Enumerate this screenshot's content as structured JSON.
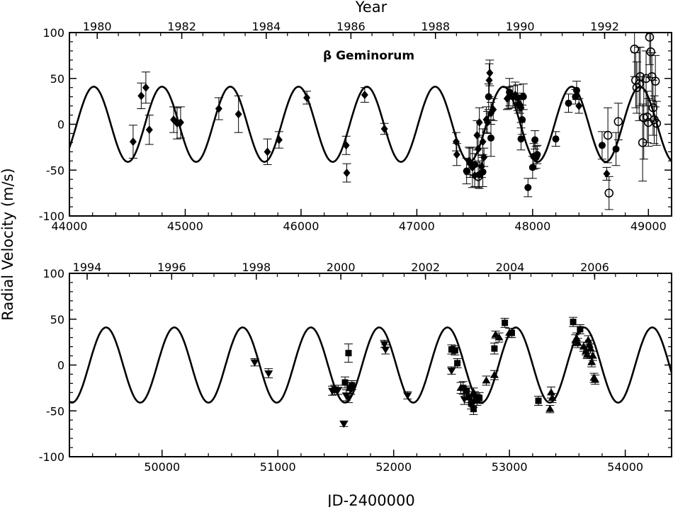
{
  "figure": {
    "top_axis_title": "Year",
    "ylabel": "Radial Velocity (m/s)",
    "xlabel": "JD-2400000",
    "star_name": "β Geminorum"
  },
  "chart_data": [
    {
      "type": "scatter",
      "panel": "top",
      "title": "",
      "annotation": "β Geminorum",
      "xlabel": "",
      "ylabel": "Radial Velocity (m/s)",
      "xlim": [
        44000,
        49200
      ],
      "ylim": [
        -100,
        100
      ],
      "x_ticks": [
        44000,
        45000,
        46000,
        47000,
        48000,
        49000
      ],
      "y_ticks": [
        -100,
        -50,
        0,
        50,
        100
      ],
      "top_axis": {
        "label": "Year",
        "ticks": [
          {
            "label": "1980",
            "jd": 44240
          },
          {
            "label": "1982",
            "jd": 44970
          },
          {
            "label": "1984",
            "jd": 45700
          },
          {
            "label": "1986",
            "jd": 46431
          },
          {
            "label": "1988",
            "jd": 47161
          },
          {
            "label": "1990",
            "jd": 47892
          },
          {
            "label": "1992",
            "jd": 48622
          }
        ]
      },
      "model": {
        "amplitude": 41,
        "period": 589.6,
        "peak_jd": 44210
      },
      "series": [
        {
          "marker": "diamond",
          "points": [
            [
              44550,
              -19,
              18
            ],
            [
              44620,
              31,
              14
            ],
            [
              44660,
              40,
              17
            ],
            [
              44690,
              -6,
              16
            ],
            [
              44900,
              5,
              14
            ],
            [
              44930,
              1,
              17
            ],
            [
              44960,
              2,
              17
            ],
            [
              45290,
              17,
              12
            ],
            [
              45460,
              11,
              20
            ],
            [
              45710,
              -30,
              14
            ],
            [
              45810,
              -17,
              9
            ],
            [
              46050,
              29,
              7
            ],
            [
              46390,
              -23,
              10
            ],
            [
              46395,
              -53,
              10
            ],
            [
              46550,
              32,
              8
            ],
            [
              46720,
              -5,
              6
            ],
            [
              47340,
              -19,
              10
            ],
            [
              47345,
              -33,
              12
            ],
            [
              47450,
              -40,
              15
            ],
            [
              47480,
              -47,
              22
            ],
            [
              47500,
              -56,
              12
            ],
            [
              47520,
              -12,
              16
            ],
            [
              47530,
              -27,
              15
            ],
            [
              47540,
              2,
              16
            ],
            [
              47560,
              -46,
              12
            ],
            [
              47570,
              -19,
              14
            ],
            [
              47580,
              -36,
              10
            ],
            [
              47600,
              5,
              14
            ],
            [
              47610,
              2,
              12
            ],
            [
              47625,
              48,
              18
            ],
            [
              47630,
              56,
              14
            ],
            [
              47640,
              12,
              12
            ],
            [
              47660,
              16,
              12
            ],
            [
              47780,
              28,
              12
            ],
            [
              47790,
              29,
              12
            ],
            [
              47850,
              32,
              14
            ],
            [
              47900,
              18,
              16
            ],
            [
              48400,
              20,
              8
            ],
            [
              48640,
              -54,
              7
            ]
          ]
        },
        {
          "marker": "circle",
          "points": [
            [
              47430,
              -51,
              14
            ],
            [
              47460,
              -42,
              16
            ],
            [
              47500,
              -44,
              12
            ],
            [
              47540,
              -55,
              15
            ],
            [
              47570,
              -52,
              16
            ],
            [
              47620,
              30,
              14
            ],
            [
              47640,
              -15,
              20
            ],
            [
              47800,
              35,
              15
            ],
            [
              47830,
              30,
              12
            ],
            [
              47870,
              29,
              14
            ],
            [
              47880,
              22,
              10
            ],
            [
              47890,
              20,
              8
            ],
            [
              47900,
              -16,
              12
            ],
            [
              47910,
              5,
              16
            ],
            [
              47920,
              30,
              14
            ],
            [
              47960,
              -69,
              10
            ],
            [
              48000,
              -47,
              12
            ],
            [
              48010,
              -35,
              14
            ],
            [
              48020,
              -17,
              10
            ],
            [
              48030,
              -36,
              12
            ],
            [
              48040,
              -33,
              10
            ],
            [
              48200,
              -16,
              8
            ],
            [
              48310,
              23,
              10
            ],
            [
              48370,
              30,
              8
            ],
            [
              48380,
              37,
              10
            ],
            [
              48600,
              -23,
              15
            ],
            [
              48720,
              -27,
              18
            ]
          ]
        },
        {
          "marker": "open-circle",
          "points": [
            [
              47530,
              -57,
              12
            ],
            [
              48650,
              -12,
              30
            ],
            [
              48660,
              -75,
              18
            ],
            [
              48740,
              3,
              20
            ],
            [
              48880,
              82,
              30
            ],
            [
              48890,
              48,
              30
            ],
            [
              48900,
              40,
              28
            ],
            [
              48920,
              44,
              40
            ],
            [
              48930,
              52,
              32
            ],
            [
              48950,
              -20,
              42
            ],
            [
              48960,
              7,
              45
            ],
            [
              48980,
              50,
              30
            ],
            [
              48990,
              8,
              28
            ],
            [
              49000,
              2,
              26
            ],
            [
              49010,
              95,
              30
            ],
            [
              49020,
              79,
              28
            ],
            [
              49030,
              52,
              26
            ],
            [
              49040,
              18,
              30
            ],
            [
              49050,
              5,
              26
            ],
            [
              49060,
              47,
              28
            ],
            [
              49070,
              1,
              24
            ]
          ]
        }
      ]
    },
    {
      "type": "scatter",
      "panel": "bottom",
      "title": "",
      "xlabel": "JD-2400000",
      "ylabel": "Radial Velocity (m/s)",
      "xlim": [
        49200,
        54400
      ],
      "ylim": [
        -100,
        100
      ],
      "x_ticks": [
        50000,
        51000,
        52000,
        53000,
        54000
      ],
      "y_ticks": [
        -100,
        -50,
        0,
        50,
        100
      ],
      "top_axis": {
        "label": "Year",
        "ticks": [
          {
            "label": "1994",
            "jd": 49353
          },
          {
            "label": "1996",
            "jd": 50083
          },
          {
            "label": "1998",
            "jd": 50814
          },
          {
            "label": "2000",
            "jd": 51544
          },
          {
            "label": "2002",
            "jd": 52275
          },
          {
            "label": "2004",
            "jd": 53005
          },
          {
            "label": "2006",
            "jd": 53736
          }
        ]
      },
      "model": {
        "amplitude": 41,
        "period": 589.6,
        "peak_jd": 44210
      },
      "series": [
        {
          "marker": "triangle-down",
          "points": [
            [
              50800,
              3,
              4
            ],
            [
              50920,
              -9,
              5
            ],
            [
              51470,
              -28,
              5
            ],
            [
              51520,
              -27,
              5
            ],
            [
              51570,
              -64,
              3
            ],
            [
              51590,
              -33,
              6
            ],
            [
              51610,
              -36,
              5
            ],
            [
              51630,
              -27,
              5
            ],
            [
              51920,
              23,
              4
            ],
            [
              51930,
              17,
              5
            ],
            [
              52120,
              -33,
              4
            ],
            [
              52500,
              -6,
              4
            ],
            [
              52610,
              -37,
              6
            ],
            [
              52690,
              -40,
              6
            ],
            [
              52700,
              -34,
              5
            ]
          ]
        },
        {
          "marker": "square",
          "points": [
            [
              51490,
              -27,
              5
            ],
            [
              51580,
              -19,
              6
            ],
            [
              51610,
              13,
              10
            ],
            [
              51620,
              -25,
              6
            ],
            [
              51640,
              -22,
              5
            ],
            [
              52500,
              17,
              5
            ],
            [
              52530,
              16,
              5
            ],
            [
              52550,
              2,
              5
            ],
            [
              52600,
              -25,
              7
            ],
            [
              52630,
              -28,
              5
            ],
            [
              52650,
              -35,
              6
            ],
            [
              52670,
              -42,
              6
            ],
            [
              52690,
              -48,
              6
            ],
            [
              52720,
              -38,
              6
            ],
            [
              52740,
              -36,
              6
            ],
            [
              52870,
              18,
              6
            ],
            [
              52960,
              46,
              5
            ],
            [
              53020,
              35,
              5
            ],
            [
              53250,
              -39,
              5
            ],
            [
              53550,
              47,
              5
            ],
            [
              53610,
              39,
              5
            ]
          ]
        },
        {
          "marker": "triangle-up",
          "points": [
            [
              52580,
              -25,
              6
            ],
            [
              52690,
              -30,
              5
            ],
            [
              52800,
              -17,
              5
            ],
            [
              52870,
              -11,
              5
            ],
            [
              52880,
              33,
              4
            ],
            [
              52910,
              30,
              5
            ],
            [
              53000,
              35,
              5
            ],
            [
              53350,
              -48,
              4
            ],
            [
              53360,
              -30,
              6
            ],
            [
              53370,
              -36,
              5
            ],
            [
              53570,
              27,
              6
            ],
            [
              53580,
              29,
              6
            ],
            [
              53590,
              24,
              5
            ],
            [
              53640,
              20,
              5
            ],
            [
              53660,
              15,
              4
            ],
            [
              53670,
              11,
              4
            ],
            [
              53680,
              27,
              5
            ],
            [
              53690,
              22,
              5
            ],
            [
              53700,
              18,
              5
            ],
            [
              53710,
              3,
              5
            ],
            [
              53720,
              10,
              5
            ],
            [
              53730,
              -14,
              5
            ],
            [
              53740,
              -16,
              5
            ]
          ]
        }
      ]
    }
  ]
}
